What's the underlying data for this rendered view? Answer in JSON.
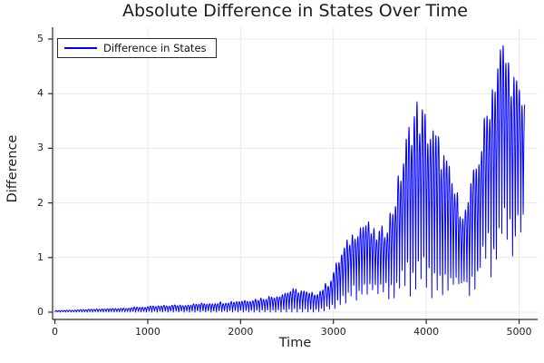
{
  "chart_data": {
    "type": "line",
    "title": "Absolute Difference in States Over Time",
    "xlabel": "Time",
    "ylabel": "Difference",
    "xticks": [
      0,
      1000,
      2000,
      3000,
      4000,
      5000
    ],
    "yticks": [
      0,
      1,
      2,
      3,
      4,
      5
    ],
    "xlim": [
      -25,
      5200
    ],
    "ylim": [
      -0.133,
      5.216
    ],
    "grid": true,
    "legend": {
      "position": "top-left",
      "entries": [
        {
          "label": "Difference in States",
          "color": "#0000ff"
        }
      ]
    },
    "colors": {
      "line": "#0000ff",
      "grid": "#e9e9e9",
      "axis": "#2a2a2a",
      "text": "#1f1f1f"
    },
    "series": [
      {
        "name": "Difference in States",
        "color": "#0000ff",
        "t_range": [
          0,
          5060
        ],
        "oscillation_spike_spacing": 29,
        "waveform": "absolute-value rapid oscillation; each spike rises from lower envelope to upper envelope and back",
        "envelope_upper": [
          [
            0,
            0.03
          ],
          [
            300,
            0.05
          ],
          [
            600,
            0.07
          ],
          [
            900,
            0.1
          ],
          [
            1200,
            0.13
          ],
          [
            1500,
            0.16
          ],
          [
            1800,
            0.2
          ],
          [
            2000,
            0.23
          ],
          [
            2200,
            0.27
          ],
          [
            2400,
            0.34
          ],
          [
            2550,
            0.44
          ],
          [
            2650,
            0.44
          ],
          [
            2750,
            0.36
          ],
          [
            2850,
            0.42
          ],
          [
            2950,
            0.6
          ],
          [
            3050,
            1.0
          ],
          [
            3150,
            1.35
          ],
          [
            3250,
            1.65
          ],
          [
            3350,
            1.75
          ],
          [
            3450,
            1.5
          ],
          [
            3550,
            1.62
          ],
          [
            3650,
            2.1
          ],
          [
            3750,
            3.0
          ],
          [
            3850,
            3.85
          ],
          [
            3900,
            4.0
          ],
          [
            3960,
            3.85
          ],
          [
            4050,
            3.55
          ],
          [
            4150,
            3.25
          ],
          [
            4250,
            2.7
          ],
          [
            4350,
            2.15
          ],
          [
            4420,
            1.95
          ],
          [
            4500,
            2.55
          ],
          [
            4600,
            3.35
          ],
          [
            4700,
            4.35
          ],
          [
            4780,
            5.0
          ],
          [
            4830,
            5.1
          ],
          [
            4900,
            4.75
          ],
          [
            4960,
            4.4
          ],
          [
            5020,
            4.1
          ],
          [
            5060,
            4.0
          ]
        ],
        "envelope_lower": [
          [
            0,
            0.003
          ],
          [
            2800,
            0.005
          ],
          [
            2900,
            0.02
          ],
          [
            3000,
            0.1
          ],
          [
            3100,
            0.28
          ],
          [
            3250,
            0.42
          ],
          [
            3400,
            0.38
          ],
          [
            3550,
            0.35
          ],
          [
            3700,
            0.5
          ],
          [
            3900,
            0.6
          ],
          [
            4100,
            0.5
          ],
          [
            4300,
            0.48
          ],
          [
            4450,
            0.55
          ],
          [
            4600,
            0.9
          ],
          [
            4750,
            1.25
          ],
          [
            4850,
            1.45
          ],
          [
            5000,
            1.6
          ],
          [
            5060,
            1.65
          ]
        ]
      }
    ]
  }
}
